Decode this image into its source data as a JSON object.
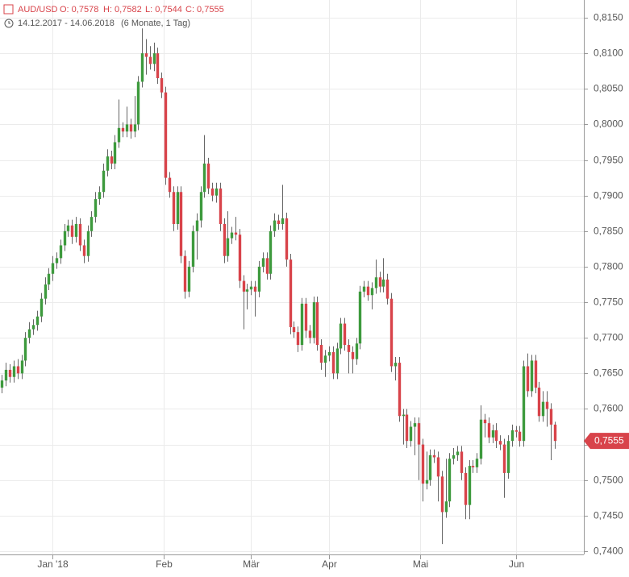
{
  "chart_data": {
    "type": "candlestick",
    "title": "AUD/USD",
    "header_values": [
      "O: 0,7578",
      "H: 0,7582",
      "L: 0,7544",
      "C: 0,7555"
    ],
    "subtitle": "14.12.2017 - 14.06.2018",
    "subtitle_note": "(6 Monate, 1 Tag)",
    "up_color": "#3d9a3d",
    "down_color": "#d8434a",
    "grid": true,
    "xlim": [
      -0.5,
      149.5
    ],
    "xticks": [
      {
        "value": 13,
        "label": "Jan '18"
      },
      {
        "value": 41.5,
        "label": "Feb"
      },
      {
        "value": 64,
        "label": "Mär"
      },
      {
        "value": 84,
        "label": "Apr"
      },
      {
        "value": 107.5,
        "label": "Mai"
      },
      {
        "value": 132,
        "label": "Jun"
      }
    ],
    "ylim": [
      0.74,
      0.815
    ],
    "yticks": [
      {
        "value": 0.74,
        "label": "0,7400"
      },
      {
        "value": 0.745,
        "label": "0,7450"
      },
      {
        "value": 0.75,
        "label": "0,7500"
      },
      {
        "value": 0.755,
        "label": "0,7550"
      },
      {
        "value": 0.76,
        "label": "0,7600"
      },
      {
        "value": 0.765,
        "label": "0,7650"
      },
      {
        "value": 0.77,
        "label": "0,7700"
      },
      {
        "value": 0.775,
        "label": "0,7750"
      },
      {
        "value": 0.78,
        "label": "0,7800"
      },
      {
        "value": 0.785,
        "label": "0,7850"
      },
      {
        "value": 0.79,
        "label": "0,7900"
      },
      {
        "value": 0.795,
        "label": "0,7950"
      },
      {
        "value": 0.8,
        "label": "0,8000"
      },
      {
        "value": 0.805,
        "label": "0,8050"
      },
      {
        "value": 0.81,
        "label": "0,8100"
      },
      {
        "value": 0.815,
        "label": "0,8150"
      }
    ],
    "current_price": {
      "value": 0.7555,
      "label": "0,7555"
    },
    "open": [
      0.763,
      0.764,
      0.7655,
      0.7645,
      0.766,
      0.765,
      0.7668,
      0.77,
      0.7712,
      0.7718,
      0.773,
      0.7755,
      0.7775,
      0.779,
      0.7805,
      0.7812,
      0.783,
      0.785,
      0.7858,
      0.7842,
      0.786,
      0.783,
      0.7815,
      0.785,
      0.787,
      0.7895,
      0.7905,
      0.7935,
      0.7955,
      0.7945,
      0.7975,
      0.7995,
      0.799,
      0.8,
      0.799,
      0.8,
      0.806,
      0.81,
      0.8095,
      0.8085,
      0.81,
      0.8065,
      0.8045,
      0.7925,
      0.7905,
      0.786,
      0.7905,
      0.7815,
      0.7765,
      0.78,
      0.785,
      0.7865,
      0.7905,
      0.7945,
      0.791,
      0.79,
      0.791,
      0.786,
      0.7815,
      0.784,
      0.7848,
      0.7845,
      0.778,
      0.7765,
      0.7768,
      0.7772,
      0.7765,
      0.78,
      0.7812,
      0.779,
      0.785,
      0.7865,
      0.786,
      0.7868,
      0.781,
      0.7715,
      0.7708,
      0.769,
      0.7748,
      0.771,
      0.77,
      0.775,
      0.769,
      0.7665,
      0.7675,
      0.768,
      0.765,
      0.7685,
      0.772,
      0.769,
      0.768,
      0.767,
      0.7692,
      0.7765,
      0.7772,
      0.776,
      0.777,
      0.7785,
      0.7772,
      0.7782,
      0.7755,
      0.766,
      0.7665,
      0.759,
      0.7592,
      0.7555,
      0.7575,
      0.758,
      0.755,
      0.7495,
      0.75,
      0.7535,
      0.7532,
      0.7505,
      0.7455,
      0.747,
      0.753,
      0.7535,
      0.754,
      0.751,
      0.7465,
      0.752,
      0.7518,
      0.753,
      0.7585,
      0.758,
      0.756,
      0.757,
      0.7555,
      0.755,
      0.751,
      0.7555,
      0.757,
      0.7568,
      0.7555,
      0.766,
      0.7625,
      0.7668,
      0.763,
      0.759,
      0.761,
      0.76,
      0.7578
    ],
    "high": [
      0.7648,
      0.7665,
      0.7663,
      0.7668,
      0.767,
      0.7676,
      0.7708,
      0.7722,
      0.7726,
      0.7738,
      0.7763,
      0.7785,
      0.7798,
      0.7815,
      0.782,
      0.7838,
      0.786,
      0.7866,
      0.7866,
      0.787,
      0.7868,
      0.7838,
      0.7858,
      0.7878,
      0.7905,
      0.7913,
      0.7945,
      0.7965,
      0.7963,
      0.7985,
      0.8035,
      0.8003,
      0.8025,
      0.8008,
      0.804,
      0.8068,
      0.8135,
      0.812,
      0.811,
      0.8115,
      0.8108,
      0.8073,
      0.8053,
      0.7933,
      0.7913,
      0.7913,
      0.7913,
      0.7823,
      0.7808,
      0.7858,
      0.7875,
      0.7913,
      0.7985,
      0.7953,
      0.7918,
      0.7918,
      0.7918,
      0.7868,
      0.7878,
      0.7856,
      0.787,
      0.7853,
      0.7788,
      0.7776,
      0.778,
      0.778,
      0.7808,
      0.782,
      0.782,
      0.7858,
      0.7875,
      0.7873,
      0.7915,
      0.7876,
      0.7818,
      0.7723,
      0.7716,
      0.7756,
      0.7756,
      0.7718,
      0.7758,
      0.7758,
      0.7698,
      0.7683,
      0.7688,
      0.7688,
      0.7693,
      0.7728,
      0.7728,
      0.7698,
      0.7688,
      0.77,
      0.7773,
      0.778,
      0.778,
      0.7778,
      0.781,
      0.7793,
      0.7812,
      0.779,
      0.7763,
      0.7673,
      0.7673,
      0.76,
      0.76,
      0.7583,
      0.7588,
      0.7588,
      0.7558,
      0.754,
      0.7543,
      0.7543,
      0.754,
      0.7513,
      0.753,
      0.7538,
      0.7545,
      0.7548,
      0.7548,
      0.7518,
      0.7528,
      0.7528,
      0.7538,
      0.7605,
      0.7593,
      0.7588,
      0.7578,
      0.758,
      0.7563,
      0.7558,
      0.7563,
      0.7578,
      0.7576,
      0.7576,
      0.7668,
      0.7678,
      0.7676,
      0.7676,
      0.7638,
      0.7625,
      0.7625,
      0.7608,
      0.7582
    ],
    "low": [
      0.7622,
      0.7632,
      0.7637,
      0.7637,
      0.7642,
      0.7642,
      0.766,
      0.7692,
      0.7704,
      0.771,
      0.7722,
      0.7747,
      0.7767,
      0.778,
      0.7797,
      0.7804,
      0.7822,
      0.7842,
      0.7832,
      0.7834,
      0.7822,
      0.7805,
      0.7807,
      0.7842,
      0.7862,
      0.7887,
      0.7897,
      0.7927,
      0.7937,
      0.7937,
      0.7967,
      0.7982,
      0.7982,
      0.798,
      0.7982,
      0.7992,
      0.8052,
      0.807,
      0.8077,
      0.8075,
      0.8057,
      0.8037,
      0.7915,
      0.7897,
      0.785,
      0.7852,
      0.7805,
      0.7755,
      0.7757,
      0.7792,
      0.781,
      0.7855,
      0.7897,
      0.7902,
      0.7892,
      0.789,
      0.785,
      0.7805,
      0.7807,
      0.7832,
      0.7837,
      0.777,
      0.7712,
      0.774,
      0.776,
      0.773,
      0.7757,
      0.7792,
      0.7782,
      0.7782,
      0.7842,
      0.7852,
      0.7852,
      0.78,
      0.7705,
      0.77,
      0.768,
      0.7682,
      0.77,
      0.7692,
      0.7692,
      0.7682,
      0.7655,
      0.7645,
      0.7667,
      0.7642,
      0.7642,
      0.7677,
      0.7682,
      0.765,
      0.765,
      0.7662,
      0.7684,
      0.7757,
      0.7752,
      0.774,
      0.7762,
      0.7764,
      0.7764,
      0.7747,
      0.7652,
      0.764,
      0.7582,
      0.755,
      0.7545,
      0.7547,
      0.7535,
      0.75,
      0.747,
      0.7487,
      0.7492,
      0.7524,
      0.747,
      0.741,
      0.7447,
      0.7462,
      0.7522,
      0.7527,
      0.75,
      0.7445,
      0.7445,
      0.751,
      0.751,
      0.7522,
      0.756,
      0.7552,
      0.7552,
      0.7545,
      0.7542,
      0.7475,
      0.7502,
      0.7547,
      0.756,
      0.7547,
      0.7547,
      0.7617,
      0.7617,
      0.7622,
      0.7582,
      0.7582,
      0.7575,
      0.7528,
      0.7544
    ],
    "close": [
      0.764,
      0.7655,
      0.7645,
      0.766,
      0.765,
      0.7668,
      0.77,
      0.7712,
      0.7718,
      0.773,
      0.7755,
      0.7775,
      0.779,
      0.7805,
      0.7812,
      0.783,
      0.785,
      0.7858,
      0.7842,
      0.786,
      0.783,
      0.7815,
      0.785,
      0.787,
      0.7895,
      0.7905,
      0.7935,
      0.7955,
      0.7945,
      0.7975,
      0.7995,
      0.799,
      0.8,
      0.799,
      0.8,
      0.806,
      0.81,
      0.8095,
      0.8085,
      0.81,
      0.8065,
      0.8045,
      0.7925,
      0.7905,
      0.786,
      0.7905,
      0.7815,
      0.7765,
      0.78,
      0.785,
      0.7865,
      0.7905,
      0.7945,
      0.791,
      0.79,
      0.791,
      0.786,
      0.7815,
      0.784,
      0.7848,
      0.7845,
      0.778,
      0.7765,
      0.7768,
      0.7772,
      0.7765,
      0.78,
      0.7812,
      0.779,
      0.785,
      0.7865,
      0.786,
      0.7868,
      0.781,
      0.7715,
      0.7708,
      0.769,
      0.7748,
      0.771,
      0.77,
      0.775,
      0.769,
      0.7665,
      0.7675,
      0.768,
      0.765,
      0.7685,
      0.772,
      0.769,
      0.768,
      0.767,
      0.7692,
      0.7765,
      0.7772,
      0.776,
      0.777,
      0.7785,
      0.7772,
      0.7782,
      0.7755,
      0.766,
      0.7665,
      0.759,
      0.7592,
      0.7555,
      0.7575,
      0.758,
      0.755,
      0.7495,
      0.75,
      0.7535,
      0.7532,
      0.7505,
      0.7455,
      0.747,
      0.753,
      0.7535,
      0.754,
      0.751,
      0.7465,
      0.752,
      0.7518,
      0.753,
      0.7585,
      0.758,
      0.756,
      0.757,
      0.7555,
      0.755,
      0.751,
      0.7555,
      0.757,
      0.7568,
      0.7555,
      0.766,
      0.7625,
      0.7668,
      0.763,
      0.759,
      0.761,
      0.76,
      0.7578,
      0.7555
    ]
  }
}
